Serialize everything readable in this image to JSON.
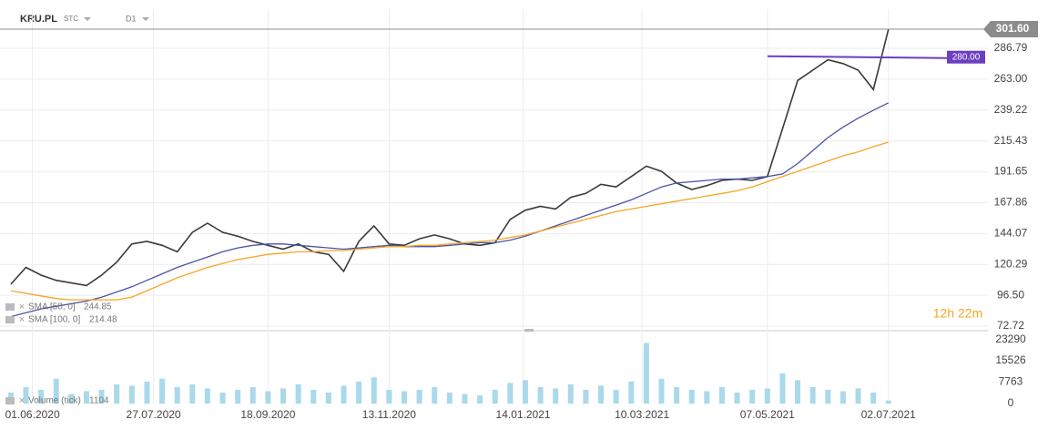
{
  "header": {
    "symbol": "KRU.PL",
    "market": "STC",
    "interval": "D1"
  },
  "countdown": "12h 22m",
  "chart_data": [
    {
      "type": "line",
      "x": [
        "22.05.2020",
        "29.05.2020",
        "05.06.2020",
        "12.06.2020",
        "19.06.2020",
        "26.06.2020",
        "03.07.2020",
        "10.07.2020",
        "17.07.2020",
        "24.07.2020",
        "31.07.2020",
        "07.08.2020",
        "14.08.2020",
        "21.08.2020",
        "28.08.2020",
        "04.09.2020",
        "11.09.2020",
        "18.09.2020",
        "25.09.2020",
        "02.10.2020",
        "09.10.2020",
        "16.10.2020",
        "23.10.2020",
        "30.10.2020",
        "06.11.2020",
        "13.11.2020",
        "20.11.2020",
        "27.11.2020",
        "04.12.2020",
        "11.12.2020",
        "18.12.2020",
        "25.12.2020",
        "01.01.2021",
        "08.01.2021",
        "15.01.2021",
        "22.01.2021",
        "29.01.2021",
        "05.02.2021",
        "12.02.2021",
        "19.02.2021",
        "26.02.2021",
        "05.03.2021",
        "12.03.2021",
        "19.03.2021",
        "26.03.2021",
        "02.04.2021",
        "09.04.2021",
        "16.04.2021",
        "23.04.2021",
        "30.04.2021",
        "07.05.2021",
        "14.05.2021",
        "21.05.2021",
        "28.05.2021",
        "04.06.2021",
        "11.06.2021",
        "18.06.2021",
        "25.06.2021",
        "02.07.2021"
      ],
      "xlim": [
        "17.05.2020",
        "17.08.2021"
      ],
      "ylim": [
        69.9,
        317
      ],
      "yticks": [
        {
          "value": 72.72,
          "label": "72.72"
        },
        {
          "value": 96.5,
          "label": "96.50"
        },
        120.29,
        144.07,
        167.86,
        191.65,
        215.43,
        239.22,
        {
          "value": 263,
          "label": "263.00"
        },
        286.79
      ],
      "grid": true,
      "last_price": {
        "value": 301.6,
        "label": "301.60",
        "color": "#8c8c8c"
      },
      "hline": {
        "value": 280,
        "label": "280.00",
        "color": "#6b3fc0"
      },
      "series": [
        {
          "color": "#3a3a3a",
          "values": [
            105,
            118,
            112,
            108,
            106,
            104,
            112,
            122,
            136,
            138,
            135,
            130,
            145,
            152,
            145,
            142,
            138,
            135,
            132,
            136,
            130,
            128,
            115,
            138,
            150,
            136,
            135,
            140,
            143,
            140,
            136,
            135,
            137,
            155,
            162,
            165,
            163,
            172,
            175,
            182,
            180,
            188,
            196,
            192,
            183,
            178,
            181,
            185,
            186,
            185,
            188,
            225,
            262,
            270,
            278,
            275,
            270,
            255,
            301.6
          ]
        },
        {
          "name": "SMA [50, 0]",
          "color": "#4b53a8",
          "values": [
            80,
            83,
            86,
            88,
            90,
            92,
            95,
            99,
            103,
            108,
            113,
            118,
            122,
            126,
            130,
            133,
            135,
            136,
            136,
            135,
            134,
            133,
            132,
            133,
            134,
            135,
            134,
            134,
            134,
            135,
            136,
            137,
            137,
            139,
            142,
            146,
            150,
            154,
            158,
            162,
            166,
            170,
            175,
            180,
            183,
            184,
            185,
            186,
            186,
            187,
            188,
            190,
            198,
            208,
            218,
            226,
            233,
            239,
            244.85
          ]
        },
        {
          "name": "SMA [100, 0]",
          "color": "#f5a623",
          "values": [
            100,
            98,
            96,
            94,
            93,
            93,
            93,
            93,
            95,
            100,
            105,
            110,
            114,
            118,
            121,
            124,
            126,
            128,
            129,
            130,
            130,
            131,
            131,
            132,
            133,
            134,
            134,
            135,
            135,
            136,
            137,
            138,
            139,
            141,
            143,
            146,
            149,
            152,
            155,
            158,
            161,
            163,
            165,
            167,
            169,
            171,
            173,
            175,
            177,
            180,
            184,
            188,
            192,
            196,
            200,
            204,
            207,
            211,
            214.48
          ]
        }
      ]
    },
    {
      "type": "bar",
      "xlim": [
        "17.05.2020",
        "17.08.2021"
      ],
      "xticks": [
        "01.06.2020",
        "27.07.2020",
        "18.09.2020",
        "13.11.2020",
        "14.01.2021",
        "10.03.2021",
        "07.05.2021",
        "02.07.2021"
      ],
      "ylim": [
        0,
        25800
      ],
      "yticks": [
        0,
        7763,
        15526,
        23290
      ],
      "series": [
        {
          "name": "Volume (tick)",
          "color": "#a9d9ea",
          "values": [
            4000,
            6000,
            5000,
            9000,
            3500,
            4500,
            5000,
            7000,
            6500,
            8000,
            9000,
            6000,
            7000,
            5500,
            4000,
            5000,
            6000,
            4500,
            5500,
            7000,
            5000,
            4000,
            6500,
            8000,
            9500,
            5000,
            4500,
            5000,
            6000,
            4000,
            3500,
            3000,
            5000,
            7500,
            8500,
            6000,
            5500,
            7000,
            5000,
            6500,
            5000,
            8000,
            22000,
            9000,
            6000,
            5000,
            4500,
            6000,
            4000,
            5000,
            5500,
            11000,
            8500,
            6000,
            5000,
            4500,
            5500,
            4000,
            1104
          ]
        }
      ]
    }
  ]
}
